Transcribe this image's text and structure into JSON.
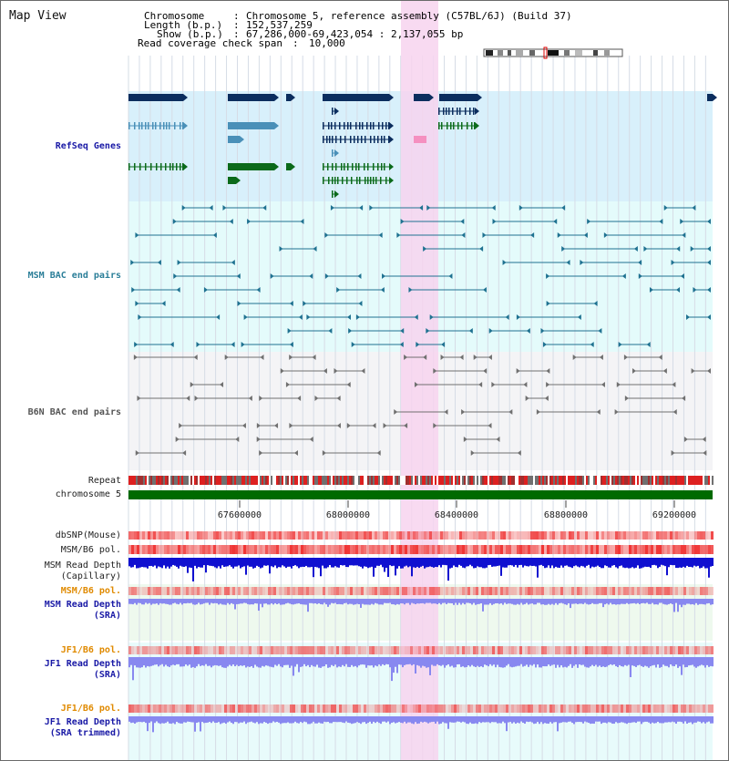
{
  "view_title": "Map View",
  "header": {
    "chromosome_label": "Chromosome",
    "chromosome_value": "Chromosome 5, reference assembly (C57BL/6J) (Build 37)",
    "length_label": "Length (b.p.)",
    "length_value": "152,537,259",
    "show_label": "Show (b.p.)",
    "show_value": "67,286,000-69,423,054 : 2,137,055 bp",
    "span_label": "Read coverage check span",
    "span_value": "10,000"
  },
  "tracks": {
    "refseq": "RefSeq Genes",
    "msm_bac": "MSM BAC end pairs",
    "b6n_bac": "B6N BAC end pairs",
    "repeat": "Repeat",
    "chromosome": "chromosome 5",
    "dbsnp": "dbSNP(Mouse)",
    "msm_pol": "MSM/B6 pol.",
    "msm_depth_cap_1": "MSM Read Depth",
    "msm_depth_cap_2": "(Capillary)",
    "msm_pol_sra": "MSM/B6 pol.",
    "msm_depth_sra_1": "MSM Read Depth",
    "msm_depth_sra_2": "(SRA)",
    "jf1_pol": "JF1/B6 pol.",
    "jf1_depth_1": "JF1 Read Depth",
    "jf1_depth_2": "(SRA)",
    "jf1_pol_trim": "JF1/B6 pol.",
    "jf1_depth_trim_1": "JF1 Read Depth",
    "jf1_depth_trim_2": "(SRA trimmed)"
  },
  "axis_ticks": [
    "67600000",
    "68000000",
    "68400000",
    "68800000",
    "69200000"
  ],
  "colors": {
    "refseq_band": "#d8f0fb",
    "bac_band": "#e4fbfb",
    "highlight": "#f7d4ef",
    "chromosome": "#006a00",
    "refseq_navy": "#0b2d5e",
    "refseq_teal": "#4a90b8",
    "refseq_green": "#0b6a1a",
    "msm_bac": "#1f7291",
    "b6n_bac": "#707070",
    "depth_cap": "#1010d0",
    "depth_sra": "#8888f0",
    "pol": "#f07070"
  }
}
